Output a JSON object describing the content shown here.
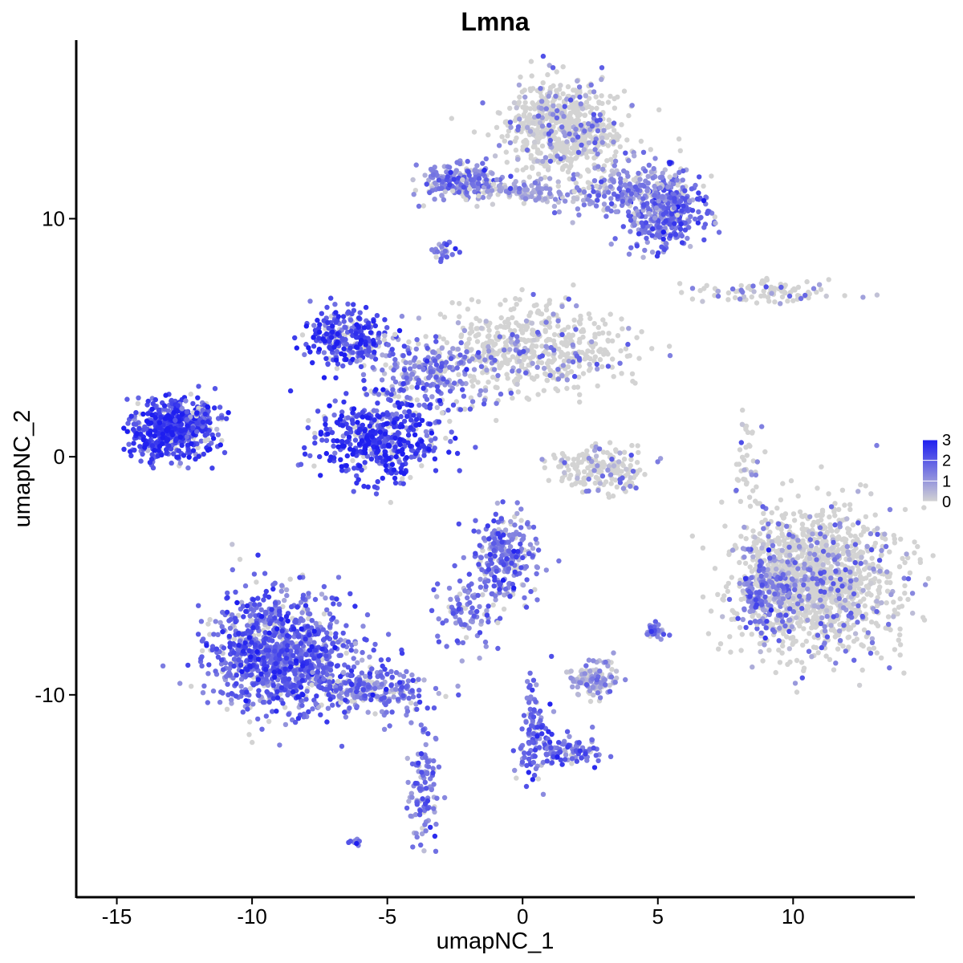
{
  "chart_data": {
    "type": "scatter",
    "title": "Lmna",
    "xlabel": "umapNC_1",
    "ylabel": "umapNC_2",
    "xlim": [
      -16.5,
      14.5
    ],
    "ylim": [
      -18.5,
      17.5
    ],
    "xticks": [
      -15,
      -10,
      -5,
      0,
      5,
      10
    ],
    "yticks": [
      -10,
      0,
      10
    ],
    "legend": {
      "position": "right",
      "min": 0,
      "max": 3,
      "ticks": [
        3,
        2,
        1,
        0
      ],
      "low_color": "#d3d3d3",
      "high_color": "#1e1ef0"
    },
    "series": [
      {
        "cluster": "top-right-fan",
        "cx": 1.5,
        "cy": 13.8,
        "sx": 1.1,
        "sy": 1.0,
        "n": 650,
        "expr": 0.35
      },
      {
        "cluster": "top-right-lobe",
        "cx": 5.3,
        "cy": 10.2,
        "sx": 0.8,
        "sy": 0.8,
        "n": 320,
        "expr": 1.6
      },
      {
        "cluster": "top-right-arm",
        "cx": 4.0,
        "cy": 11.2,
        "sx": 1.2,
        "sy": 0.6,
        "n": 220,
        "expr": 1.2
      },
      {
        "cluster": "top-left-bar",
        "cx": -2.2,
        "cy": 11.6,
        "sx": 0.8,
        "sy": 0.35,
        "n": 200,
        "expr": 1.3
      },
      {
        "cluster": "top-bridge",
        "cx": 0.2,
        "cy": 11.1,
        "sx": 1.2,
        "sy": 0.25,
        "n": 120,
        "expr": 0.7
      },
      {
        "cluster": "small-blob",
        "cx": -2.9,
        "cy": 8.6,
        "sx": 0.2,
        "sy": 0.2,
        "n": 25,
        "expr": 1.6
      },
      {
        "cluster": "right-strand",
        "cx": 9.0,
        "cy": 6.9,
        "sx": 1.3,
        "sy": 0.25,
        "n": 90,
        "expr": 0.2
      },
      {
        "cluster": "center-fan",
        "cx": 0.5,
        "cy": 4.5,
        "sx": 1.7,
        "sy": 0.9,
        "n": 520,
        "expr": 0.45
      },
      {
        "cluster": "center-left-arm",
        "cx": -6.5,
        "cy": 5.0,
        "sx": 0.8,
        "sy": 0.6,
        "n": 260,
        "expr": 2.2
      },
      {
        "cluster": "center-cross",
        "cx": -3.5,
        "cy": 3.5,
        "sx": 1.2,
        "sy": 0.9,
        "n": 260,
        "expr": 1.4
      },
      {
        "cluster": "center-loop",
        "cx": -5.3,
        "cy": 0.8,
        "sx": 1.1,
        "sy": 0.8,
        "n": 480,
        "expr": 2.4
      },
      {
        "cluster": "left-blob",
        "cx": -13.0,
        "cy": 1.1,
        "sx": 0.8,
        "sy": 0.6,
        "n": 520,
        "expr": 2.3
      },
      {
        "cluster": "left-blob-tail",
        "cx": -11.9,
        "cy": 1.7,
        "sx": 0.4,
        "sy": 0.4,
        "n": 60,
        "expr": 1.9
      },
      {
        "cluster": "mid-small",
        "cx": 3.0,
        "cy": -0.6,
        "sx": 0.9,
        "sy": 0.5,
        "n": 190,
        "expr": 0.3
      },
      {
        "cluster": "mid-strand",
        "cx": 8.2,
        "cy": -0.3,
        "sx": 0.2,
        "sy": 0.9,
        "n": 40,
        "expr": 0.3
      },
      {
        "cluster": "big-right",
        "cx": 10.8,
        "cy": -5.2,
        "sx": 1.4,
        "sy": 1.5,
        "n": 1400,
        "expr": 0.25
      },
      {
        "cluster": "big-right-edge",
        "cx": 8.9,
        "cy": -5.6,
        "sx": 0.5,
        "sy": 0.8,
        "n": 180,
        "expr": 1.4
      },
      {
        "cluster": "center-bottom",
        "cx": -0.7,
        "cy": -4.2,
        "sx": 0.6,
        "sy": 0.9,
        "n": 260,
        "expr": 1.5
      },
      {
        "cluster": "center-bottom-arm",
        "cx": -2.0,
        "cy": -6.5,
        "sx": 0.6,
        "sy": 0.8,
        "n": 90,
        "expr": 1.4
      },
      {
        "cluster": "bottom-left-fan",
        "cx": -9.0,
        "cy": -8.3,
        "sx": 1.3,
        "sy": 1.2,
        "n": 1100,
        "expr": 1.8
      },
      {
        "cluster": "bottom-left-tail",
        "cx": -5.5,
        "cy": -9.8,
        "sx": 1.0,
        "sy": 0.5,
        "n": 240,
        "expr": 1.5
      },
      {
        "cluster": "bottom-strand",
        "cx": -3.6,
        "cy": -14.2,
        "sx": 0.3,
        "sy": 1.3,
        "n": 110,
        "expr": 1.5
      },
      {
        "cluster": "bottom-center-Y",
        "cx": 0.4,
        "cy": -11.6,
        "sx": 0.3,
        "sy": 1.0,
        "n": 110,
        "expr": 1.7
      },
      {
        "cluster": "bottom-center-Y-arm",
        "cx": 1.8,
        "cy": -12.3,
        "sx": 0.7,
        "sy": 0.3,
        "n": 90,
        "expr": 1.6
      },
      {
        "cluster": "small-right",
        "cx": 2.6,
        "cy": -9.4,
        "sx": 0.4,
        "sy": 0.35,
        "n": 110,
        "expr": 0.8
      },
      {
        "cluster": "small-far-right",
        "cx": 4.9,
        "cy": -7.3,
        "sx": 0.2,
        "sy": 0.2,
        "n": 30,
        "expr": 1.3
      },
      {
        "cluster": "tiny-bottom",
        "cx": -6.1,
        "cy": -16.2,
        "sx": 0.15,
        "sy": 0.1,
        "n": 10,
        "expr": 1.5
      }
    ]
  }
}
